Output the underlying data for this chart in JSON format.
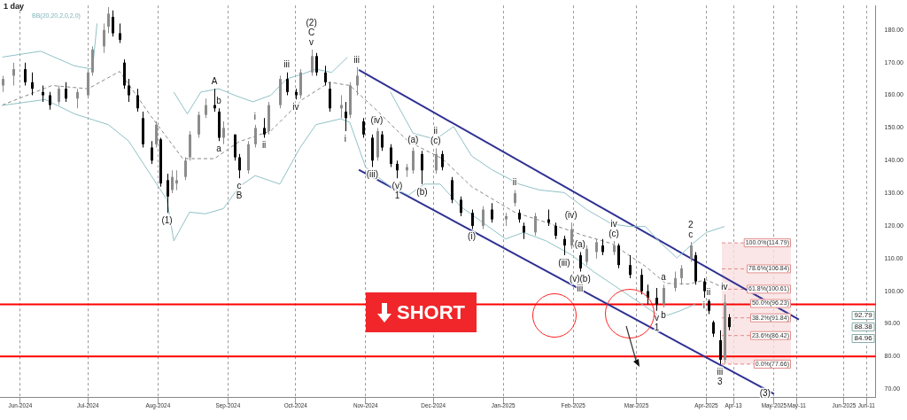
{
  "chart_data": {
    "type": "candlestick",
    "title": "1 day",
    "subtitle": "BB(20,20,2,0,2,0)",
    "x": [
      "2024-05-24",
      "2024-05-29",
      "2024-06-03",
      "2024-06-06",
      "2024-06-11",
      "2024-06-14",
      "2024-06-18",
      "2024-06-21",
      "2024-06-26",
      "2024-07-01",
      "2024-07-03",
      "2024-07-08",
      "2024-07-10",
      "2024-07-12",
      "2024-07-15",
      "2024-07-17",
      "2024-07-19",
      "2024-07-23",
      "2024-07-25",
      "2024-07-29",
      "2024-07-31",
      "2024-08-02",
      "2024-08-05",
      "2024-08-07",
      "2024-08-09",
      "2024-08-13",
      "2024-08-15",
      "2024-08-19",
      "2024-08-22",
      "2024-08-26",
      "2024-08-28",
      "2024-08-30",
      "2024-09-04",
      "2024-09-06",
      "2024-09-10",
      "2024-09-13",
      "2024-09-17",
      "2024-09-19",
      "2024-09-24",
      "2024-09-27",
      "2024-10-01",
      "2024-10-03",
      "2024-10-08",
      "2024-10-10",
      "2024-10-14",
      "2024-10-16",
      "2024-10-21",
      "2024-10-23",
      "2024-10-25",
      "2024-10-28",
      "2024-10-31",
      "2024-11-04",
      "2024-11-06",
      "2024-11-08",
      "2024-11-12",
      "2024-11-15",
      "2024-11-19",
      "2024-11-22",
      "2024-11-26",
      "2024-12-02",
      "2024-12-05",
      "2024-12-09",
      "2024-12-13",
      "2024-12-18",
      "2024-12-23",
      "2024-12-27",
      "2025-01-02",
      "2025-01-06",
      "2025-01-08",
      "2025-01-10",
      "2025-01-15",
      "2025-01-21",
      "2025-01-24",
      "2025-01-28",
      "2025-01-31",
      "2025-02-04",
      "2025-02-07",
      "2025-02-11",
      "2025-02-14",
      "2025-02-19",
      "2025-02-21",
      "2025-02-26",
      "2025-03-03",
      "2025-03-06",
      "2025-03-10",
      "2025-03-13",
      "2025-03-18",
      "2025-03-21",
      "2025-03-25",
      "2025-03-27",
      "2025-03-31",
      "2025-04-02",
      "2025-04-04",
      "2025-04-07",
      "2025-04-09",
      "2025-04-11"
    ],
    "ohlc": [
      [
        163,
        166,
        161,
        165
      ],
      [
        166,
        170,
        163,
        168
      ],
      [
        168,
        170,
        163,
        164
      ],
      [
        164,
        167,
        160,
        162
      ],
      [
        161,
        163,
        158,
        160
      ],
      [
        160,
        161,
        155.6,
        157
      ],
      [
        158,
        163,
        157,
        162
      ],
      [
        162,
        164,
        158,
        159
      ],
      [
        159,
        162,
        156,
        161
      ],
      [
        160,
        168,
        159,
        167
      ],
      [
        167,
        175,
        166,
        174
      ],
      [
        175,
        182,
        173,
        180
      ],
      [
        181,
        187,
        179,
        185
      ],
      [
        184,
        186,
        178,
        179
      ],
      [
        179,
        182,
        176,
        177
      ],
      [
        170,
        171,
        162,
        163
      ],
      [
        163,
        165,
        158,
        160
      ],
      [
        160,
        162,
        155,
        156
      ],
      [
        153,
        155,
        144,
        145
      ],
      [
        144,
        146,
        139,
        140
      ],
      [
        145,
        152,
        144,
        151
      ],
      [
        146.5,
        147,
        132,
        133
      ],
      [
        134,
        136,
        124,
        129
      ],
      [
        131,
        137,
        130,
        135
      ],
      [
        133,
        137,
        131,
        134
      ],
      [
        135,
        141,
        134,
        140
      ],
      [
        141,
        149,
        140,
        148
      ],
      [
        148,
        155,
        147,
        154
      ],
      [
        154,
        159,
        153,
        157
      ],
      [
        157,
        162,
        155,
        156
      ],
      [
        155,
        156,
        146,
        147
      ],
      [
        147,
        152,
        145,
        150
      ],
      [
        148,
        148,
        140,
        141
      ],
      [
        141,
        142,
        134.6,
        137
      ],
      [
        137,
        146,
        136,
        145
      ],
      [
        145,
        151,
        144,
        150
      ],
      [
        150,
        153,
        147,
        148
      ],
      [
        149,
        158,
        148,
        157
      ],
      [
        157,
        166,
        156,
        165
      ],
      [
        165,
        167,
        160,
        161
      ],
      [
        161,
        162,
        158.7,
        160
      ],
      [
        160,
        168,
        159,
        167
      ],
      [
        167,
        174,
        166,
        172
      ],
      [
        172,
        173,
        166,
        167
      ],
      [
        167,
        169,
        163,
        164
      ],
      [
        162,
        164,
        155,
        156
      ],
      [
        156,
        160,
        153,
        157
      ],
      [
        155,
        158,
        149,
        153
      ],
      [
        154,
        164,
        153,
        163
      ],
      [
        163,
        168.6,
        160,
        166
      ],
      [
        152,
        153,
        147,
        148
      ],
      [
        147,
        148,
        138,
        140
      ],
      [
        141,
        150,
        140,
        149
      ],
      [
        148,
        149,
        143,
        144
      ],
      [
        144,
        145,
        138,
        139
      ],
      [
        139,
        140,
        134.6,
        137
      ],
      [
        137,
        139,
        135,
        138
      ],
      [
        137,
        144,
        136,
        143
      ],
      [
        142,
        143,
        132.8,
        137
      ],
      [
        137,
        143.7,
        136,
        142
      ],
      [
        142,
        143,
        137,
        138
      ],
      [
        134,
        135,
        127,
        128
      ],
      [
        128,
        129,
        123,
        124
      ],
      [
        124,
        125,
        119,
        120
      ],
      [
        120,
        126,
        119,
        125
      ],
      [
        125,
        127,
        121,
        122
      ],
      [
        122,
        124,
        120,
        123
      ],
      [
        127,
        131,
        126,
        130
      ],
      [
        124,
        125,
        121,
        122
      ],
      [
        120,
        121,
        116,
        118
      ],
      [
        118,
        124,
        117,
        123
      ],
      [
        122,
        125,
        120,
        121
      ],
      [
        120,
        121,
        116,
        117
      ],
      [
        116,
        117,
        111,
        114
      ],
      [
        114,
        121,
        113,
        119
      ],
      [
        111,
        112,
        106,
        107
      ],
      [
        109,
        114,
        108,
        113
      ],
      [
        112,
        116,
        110,
        115
      ],
      [
        114,
        116,
        111,
        112
      ],
      [
        112,
        115.4,
        111,
        114
      ],
      [
        114,
        114.6,
        107,
        108
      ],
      [
        108,
        111,
        104,
        105
      ],
      [
        105,
        106.8,
        99,
        100
      ],
      [
        100,
        102,
        96,
        98
      ],
      [
        98,
        101,
        94,
        96
      ],
      [
        96,
        102,
        95,
        101
      ],
      [
        101,
        106,
        100,
        104
      ],
      [
        104,
        108,
        102,
        107
      ],
      [
        110,
        115.1,
        109,
        114
      ],
      [
        111,
        112,
        102,
        103
      ],
      [
        103,
        104,
        98,
        100
      ],
      [
        97,
        97.5,
        93,
        94
      ],
      [
        90.5,
        91,
        86,
        87
      ],
      [
        85,
        88,
        77.66,
        79
      ],
      [
        79,
        99,
        78,
        96.5
      ],
      [
        92,
        93,
        88,
        89
      ]
    ],
    "series": [
      {
        "type": "line",
        "color": "#8fc1c6",
        "x": [
          "2024-05-24",
          "2024-06-10",
          "2024-06-25",
          "2024-07-03",
          "2024-07-05",
          "2024-07-25",
          "2024-08-08",
          "2024-08-14",
          "2024-08-20",
          "2024-08-28",
          "2024-09-04",
          "2024-09-12",
          "2024-09-20",
          "2024-09-27",
          "2024-10-04",
          "2024-10-10",
          "2024-10-17",
          "2024-10-24",
          "2024-11-05",
          "2024-11-12",
          "2024-11-22",
          "2024-12-02",
          "2024-12-10",
          "2024-12-18",
          "2024-12-27",
          "2025-01-08",
          "2025-01-17",
          "2025-01-28",
          "2025-02-07",
          "2025-02-18",
          "2025-02-26",
          "2025-03-05",
          "2025-03-12",
          "2025-03-19",
          "2025-03-26",
          "2025-04-01",
          "2025-04-09"
        ],
        "values": [
          171.7,
          173.5,
          169,
          168,
          182,
          null,
          161,
          154.3,
          161,
          162,
          160,
          158,
          160,
          165,
          166.5,
          168,
          167,
          171.7,
          null,
          161,
          148.4,
          146.5,
          150.4,
          141.4,
          137.2,
          132.8,
          131,
          130.2,
          125,
          120.6,
          119.8,
          119.8,
          114.6,
          110.2,
          114.6,
          118,
          119.8
        ]
      },
      {
        "type": "line",
        "color": "#8fc1c6",
        "x": [
          "2024-05-24",
          "2024-06-12",
          "2024-06-25",
          "2024-07-10",
          "2024-07-19",
          "2024-07-29",
          "2024-08-05",
          "2024-08-08",
          "2024-08-15",
          "2024-08-22",
          "2024-08-30",
          "2024-09-06",
          "2024-09-13",
          "2024-09-24",
          "2024-10-03",
          "2024-10-10",
          "2024-10-21",
          "2024-10-25",
          "2024-11-01",
          "2024-11-12",
          "2024-11-20",
          "2024-11-27",
          "2024-12-04",
          "2024-12-13",
          "2025-01-02",
          "2025-01-10",
          "2025-01-20",
          "2025-01-31",
          "2025-02-10",
          "2025-03-12",
          "2025-03-20",
          "2025-03-27"
        ],
        "values": [
          156.9,
          158.7,
          154.3,
          151,
          146,
          135.4,
          128,
          115.4,
          124.2,
          123.7,
          125.3,
          132,
          135.4,
          132.8,
          144,
          151,
          152.8,
          151.7,
          138,
          132,
          129.4,
          132.8,
          132.8,
          126,
          116,
          118,
          115.4,
          111.2,
          106,
          92,
          93.9,
          96
        ]
      },
      {
        "type": "line",
        "color": "#888888",
        "line_style": "dashed",
        "x": [
          "2024-05-24",
          "2024-06-15",
          "2024-07-01",
          "2024-07-15",
          "2024-07-29",
          "2024-08-12",
          "2024-08-26",
          "2024-09-06",
          "2024-09-20",
          "2024-10-04",
          "2024-10-16",
          "2024-10-25",
          "2024-11-05",
          "2024-11-20",
          "2024-12-05",
          "2024-12-18",
          "2025-01-06",
          "2025-01-22",
          "2025-02-05",
          "2025-02-18",
          "2025-03-05",
          "2025-03-14",
          "2025-03-24",
          "2025-04-01",
          "2025-04-09"
        ],
        "values": [
          157,
          163,
          162,
          167.3,
          153.5,
          140.6,
          140.6,
          145.8,
          149.1,
          158.7,
          164,
          163,
          156,
          145.8,
          140.6,
          132,
          124.2,
          120.6,
          117.2,
          114.6,
          107.6,
          102.4,
          102.2,
          103.5,
          100.9
        ]
      },
      {
        "type": "line",
        "color": "#2e3192",
        "x": [
          "2024-10-29",
          "2025-05-12"
        ],
        "values": [
          167.8,
          91.3
        ]
      },
      {
        "type": "line",
        "color": "#2e3192",
        "x": [
          "2024-10-29",
          "2025-05-01"
        ],
        "values": [
          137.2,
          68.5
        ]
      }
    ],
    "xlim": [
      "2024-05-23",
      "2025-06-15"
    ],
    "xticks": [
      {
        "value": "2024-06-01",
        "label": "Jun-2024"
      },
      {
        "value": "2024-07-01",
        "label": "Jul-2024"
      },
      {
        "value": "2024-08-01",
        "label": "Aug-2024"
      },
      {
        "value": "2024-09-01",
        "label": "Sep-2024"
      },
      {
        "value": "2024-10-01",
        "label": "Oct-2024"
      },
      {
        "value": "2024-11-01",
        "label": "Nov-2024"
      },
      {
        "value": "2024-12-01",
        "label": "Dec-2024"
      },
      {
        "value": "2025-01-01",
        "label": "Jan-2025"
      },
      {
        "value": "2025-02-01",
        "label": "Feb-2025"
      },
      {
        "value": "2025-03-01",
        "label": "Mar-2025"
      },
      {
        "value": "2025-04-01",
        "label": "Apr-2025"
      },
      {
        "value": "2025-04-13",
        "label": "Apr-13"
      },
      {
        "value": "2025-05-01",
        "label": "May-2025"
      },
      {
        "value": "2025-05-11",
        "label": "May-11"
      },
      {
        "value": "2025-06-01",
        "label": "Jun-2025"
      },
      {
        "value": "2025-06-11",
        "label": "Jun-11"
      }
    ],
    "ylim": [
      67.5,
      187.5
    ],
    "yticks": [
      {
        "value": 70,
        "label": "70.00"
      },
      {
        "value": 80,
        "label": "80.00"
      },
      {
        "value": 90,
        "label": "90.00"
      },
      {
        "value": 100,
        "label": "100.00"
      },
      {
        "value": 110,
        "label": "110.00"
      },
      {
        "value": 120,
        "label": "120.00"
      },
      {
        "value": 130,
        "label": "130.00"
      },
      {
        "value": 140,
        "label": "140.00"
      },
      {
        "value": 150,
        "label": "150.00"
      },
      {
        "value": 160,
        "label": "160.00"
      },
      {
        "value": 170,
        "label": "170.00"
      },
      {
        "value": 180,
        "label": "180.00"
      }
    ],
    "grid": "x",
    "bands": [
      {
        "axis": "y",
        "from": 77.66,
        "to": 114.79,
        "color": "#f9e0e0"
      }
    ],
    "ref_lines": [
      {
        "axis": "y",
        "value": 96,
        "color": "#ff0000"
      },
      {
        "axis": "y",
        "value": 80,
        "color": "#ff0000"
      },
      {
        "axis": "y",
        "value": 114.79,
        "label": "100.0%(114.79)",
        "color": "#e08a8a",
        "line_style": "dashed"
      },
      {
        "axis": "y",
        "value": 106.84,
        "label": "78.6%(106.84)",
        "color": "#e08a8a",
        "line_style": "dashed"
      },
      {
        "axis": "y",
        "value": 100.61,
        "label": "61.8%(100.61)",
        "color": "#e08a8a",
        "line_style": "dashed"
      },
      {
        "axis": "y",
        "value": 96.23,
        "label": "50.0%(96.23)",
        "color": "#e08a8a",
        "line_style": "dashed"
      },
      {
        "axis": "y",
        "value": 91.84,
        "label": "38.2%(91.84)",
        "color": "#e08a8a",
        "line_style": "dashed"
      },
      {
        "axis": "y",
        "value": 86.42,
        "label": "23.6%(86.42)",
        "color": "#e08a8a",
        "line_style": "dashed"
      },
      {
        "axis": "y",
        "value": 77.66,
        "label": "0.0%(77.66)",
        "color": "#e08a8a",
        "line_style": "dashed"
      }
    ],
    "annotations": [
      "SHORT",
      "92.79",
      "88.38",
      "84.96",
      {
        "text": "(1)",
        "x": "2024-08-05",
        "y": 124
      },
      {
        "text": "A",
        "x": "2024-08-26",
        "y": 162
      },
      {
        "text": "a",
        "x": "2024-08-28",
        "y": 146
      },
      {
        "text": "b",
        "x": "2024-08-28",
        "y": 156
      },
      {
        "text": "c",
        "x": "2024-09-06",
        "y": 134.6
      },
      {
        "text": "B",
        "x": "2024-09-06",
        "y": 134.6
      },
      {
        "text": "i",
        "x": "2024-09-13",
        "y": 151
      },
      {
        "text": "ii",
        "x": "2024-09-17",
        "y": 147
      },
      {
        "text": "iii",
        "x": "2024-09-27",
        "y": 167
      },
      {
        "text": "iv",
        "x": "2024-10-01",
        "y": 158.7
      },
      {
        "text": "v",
        "x": "2024-10-08",
        "y": 174
      },
      {
        "text": "C",
        "x": "2024-10-08",
        "y": 174
      },
      {
        "text": "(2)",
        "x": "2024-10-08",
        "y": 174
      },
      {
        "text": "i",
        "x": "2024-10-23",
        "y": 149
      },
      {
        "text": "iii",
        "x": "2024-10-28",
        "y": 168.6
      },
      {
        "text": "(iii)",
        "x": "2024-11-04",
        "y": 138
      },
      {
        "text": "(iv)",
        "x": "2024-11-06",
        "y": 150
      },
      {
        "text": "(v)",
        "x": "2024-11-15",
        "y": 134.6
      },
      {
        "text": "1",
        "x": "2024-11-15",
        "y": 134.6
      },
      {
        "text": "(a)",
        "x": "2024-11-22",
        "y": 144
      },
      {
        "text": "(b)",
        "x": "2024-11-26",
        "y": 132.8
      },
      {
        "text": "(c)",
        "x": "2024-12-02",
        "y": 143.7
      },
      {
        "text": "ii",
        "x": "2024-12-02",
        "y": 143.7
      },
      {
        "text": "(i)",
        "x": "2024-12-18",
        "y": 119
      },
      {
        "text": "ii",
        "x": "2025-01-06",
        "y": 131
      },
      {
        "text": "(iii)",
        "x": "2025-01-28",
        "y": 111
      },
      {
        "text": "(iv)",
        "x": "2025-01-31",
        "y": 121
      },
      {
        "text": "(a)",
        "x": "2025-02-04",
        "y": 112
      },
      {
        "text": "(v)(b)",
        "x": "2025-02-04",
        "y": 106
      },
      {
        "text": "iii",
        "x": "2025-02-04",
        "y": 106
      },
      {
        "text": "(c)",
        "x": "2025-02-19",
        "y": 115.4
      },
      {
        "text": "iv",
        "x": "2025-02-19",
        "y": 115.4
      },
      {
        "text": "a",
        "x": "2025-03-13",
        "y": 102
      },
      {
        "text": "b",
        "x": "2025-03-13",
        "y": 95
      },
      {
        "text": "v",
        "x": "2025-03-10",
        "y": 94
      },
      {
        "text": "1",
        "x": "2025-03-10",
        "y": 94
      },
      {
        "text": "c",
        "x": "2025-03-25",
        "y": 115.1
      },
      {
        "text": "2",
        "x": "2025-03-25",
        "y": 115.1
      },
      {
        "text": "i",
        "x": "2025-03-31",
        "y": 98
      },
      {
        "text": "ii",
        "x": "2025-04-02",
        "y": 97.5
      },
      {
        "text": "iv",
        "x": "2025-04-09",
        "y": 99
      },
      {
        "text": "iii",
        "x": "2025-04-07",
        "y": 77.66
      },
      {
        "text": "3",
        "x": "2025-04-07",
        "y": 77.66
      },
      {
        "text": "(3)",
        "x": "2025-05-01",
        "y": 68.5
      }
    ]
  }
}
